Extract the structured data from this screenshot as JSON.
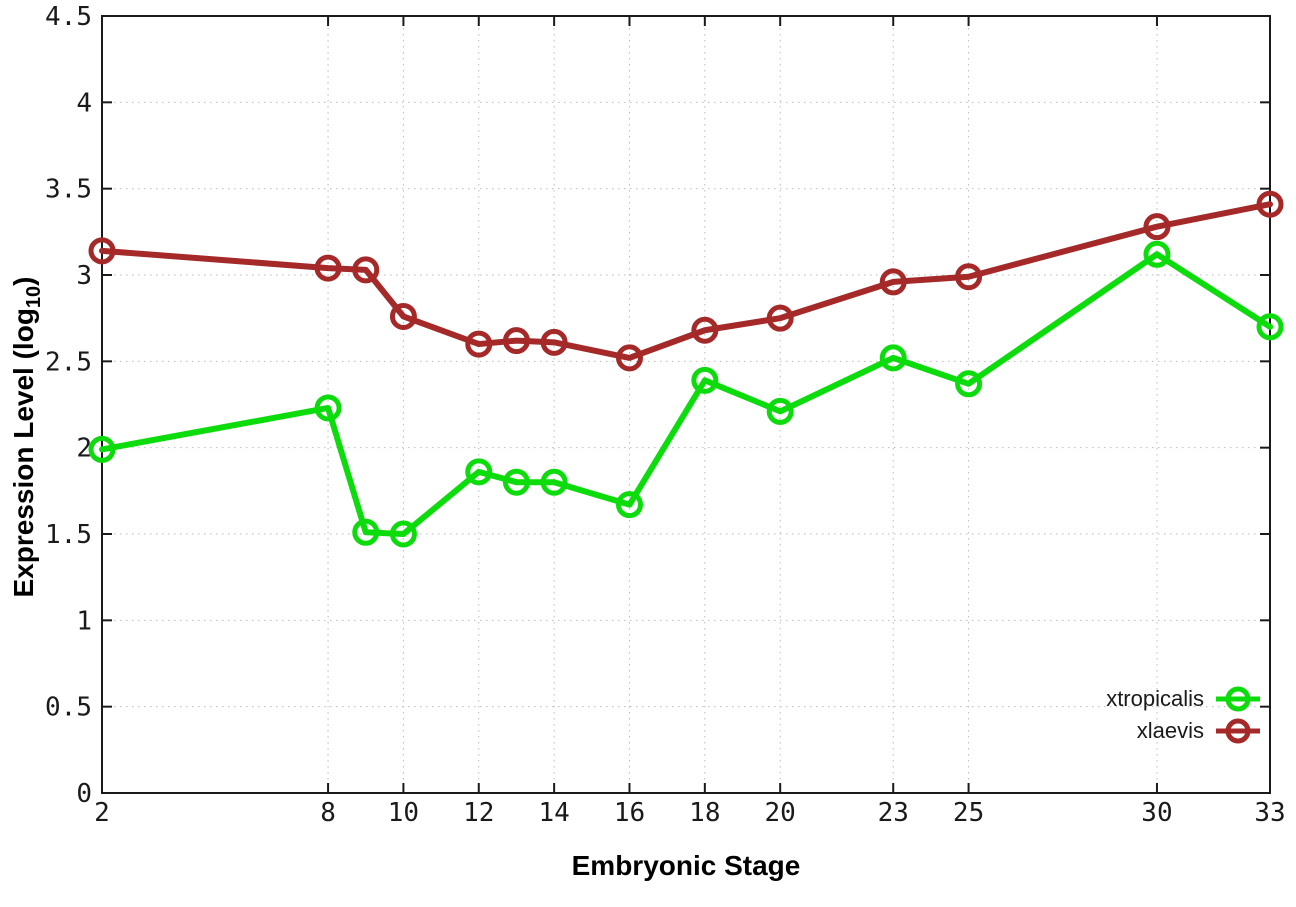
{
  "chart_data": {
    "type": "line",
    "title": "",
    "xlabel": "Embryonic Stage",
    "ylabel": "Expression Level (log10)",
    "ylabel_parts": {
      "prefix": "Expression Level (log",
      "subscript": "10",
      "suffix": ")"
    },
    "xlim": [
      2,
      33
    ],
    "ylim": [
      0,
      4.5
    ],
    "x_ticks": [
      2,
      8,
      10,
      12,
      14,
      16,
      18,
      20,
      23,
      25,
      30,
      33
    ],
    "x_tick_labels": [
      "2",
      "8",
      "10",
      "12",
      "14",
      "16",
      "18",
      "20",
      "23",
      "25",
      "30",
      "33"
    ],
    "y_ticks": [
      0,
      0.5,
      1,
      1.5,
      2,
      2.5,
      3,
      3.5,
      4,
      4.5
    ],
    "y_tick_labels": [
      "0",
      "0.5",
      "1",
      "1.5",
      "2",
      "2.5",
      "3",
      "3.5",
      "4",
      "4.5"
    ],
    "grid": true,
    "legend_position": "inside-bottom-right",
    "marker": "open-circle",
    "x": [
      2,
      8,
      9,
      10,
      12,
      13,
      14,
      16,
      18,
      20,
      23,
      25,
      30,
      33
    ],
    "series": [
      {
        "name": "xtropicalis",
        "color": "#0cdc0c",
        "values": [
          1.99,
          2.23,
          1.51,
          1.5,
          1.86,
          1.8,
          1.8,
          1.67,
          2.39,
          2.21,
          2.52,
          2.37,
          3.12,
          2.7
        ]
      },
      {
        "name": "xlaevis",
        "color": "#a62929",
        "values": [
          3.14,
          3.04,
          3.03,
          2.76,
          2.6,
          2.62,
          2.61,
          2.52,
          2.68,
          2.75,
          2.96,
          2.99,
          3.28,
          3.41
        ]
      }
    ]
  },
  "styles": {
    "grid_color": "#bbbbbb",
    "axis_color": "#1a1a1a",
    "text_color": "#1a1a1a",
    "background": "#ffffff"
  }
}
